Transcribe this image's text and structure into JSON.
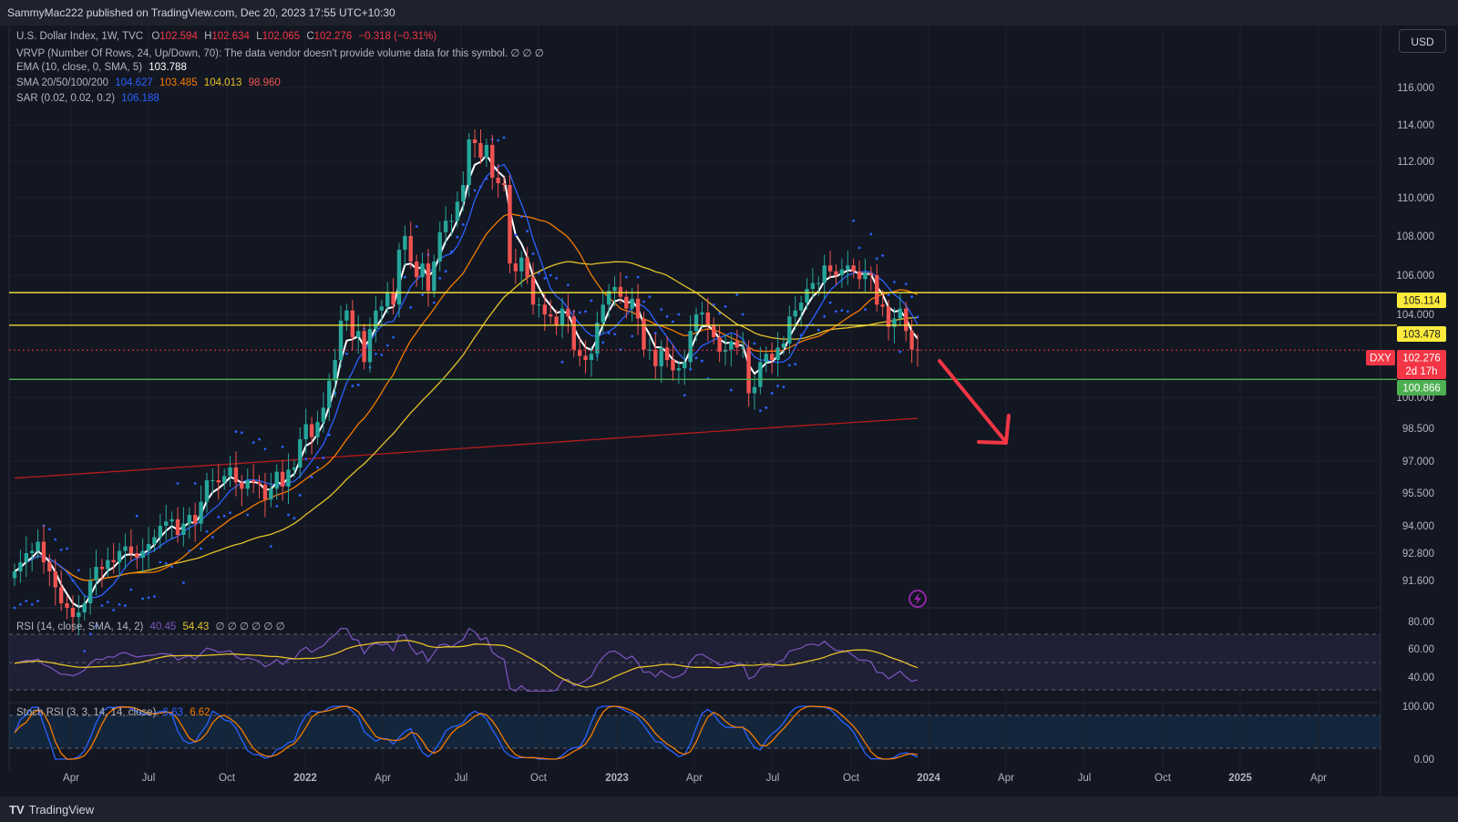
{
  "header": {
    "publisher": "SammyMac222 published on TradingView.com, Dec 20, 2023 17:55 UTC+10:30"
  },
  "currency_button": "USD",
  "footer": {
    "logo_text": "TradingView"
  },
  "colors": {
    "up": "#26a69a",
    "down": "#ef5350",
    "ema": "#ffffff",
    "sma20": "#2962ff",
    "sma50": "#f57c00",
    "sma100": "#e6c229",
    "sma200": "#b71c1c",
    "sar": "#2962ff",
    "rsi": "#7e57c2",
    "stoch_k": "#2962ff",
    "stoch_d": "#f57c00",
    "hline": "#ffeb3b",
    "support": "#4caf50",
    "arrow": "#f23645"
  },
  "legend": {
    "symbol": {
      "title": "U.S. Dollar Index, 1W, TVC",
      "o_label": "O",
      "o": "102.594",
      "h_label": "H",
      "h": "102.634",
      "l_label": "L",
      "l": "102.065",
      "c_label": "C",
      "c": "102.276",
      "chg": "−0.318 (−0.31%)"
    },
    "vrvp": "VRVP (Number Of Rows, 24, Up/Down, 70): The data vendor doesn't provide volume data for this symbol.  ∅  ∅  ∅",
    "ema": {
      "label": "EMA (10, close, 0, SMA, 5)",
      "value": "103.788"
    },
    "sma": {
      "label": "SMA 20/50/100/200",
      "v20": "104.627",
      "v50": "103.485",
      "v100": "104.013",
      "v200": "98.960"
    },
    "sar": {
      "label": "SAR (0.02, 0.02, 0.2)",
      "value": "106.188"
    },
    "rsi": {
      "label": "RSI (14, close, SMA, 14, 2)",
      "value": "40.45",
      "ma": "54.43",
      "na": "∅  ∅  ∅  ∅  ∅  ∅"
    },
    "stoch": {
      "label": "Stoch RSI (3, 3, 14, 14, close)",
      "k": "6.63",
      "d": "6.62"
    }
  },
  "chart_data": {
    "type": "candlestick",
    "symbol": "DXY",
    "timeframe": "1W",
    "price_axis_ticks": [
      "116.000",
      "114.000",
      "112.000",
      "110.000",
      "108.000",
      "106.000",
      "104.000",
      "100.000",
      "98.500",
      "97.000",
      "95.500",
      "94.000",
      "92.800",
      "91.600"
    ],
    "time_axis_ticks": [
      "Apr",
      "Jul",
      "Oct",
      "2022",
      "Apr",
      "Jul",
      "Oct",
      "2023",
      "Apr",
      "Jul",
      "Oct",
      "2024",
      "Apr",
      "Jul",
      "Oct",
      "2025",
      "Apr"
    ],
    "price_labels": {
      "r1": "105.114",
      "r2": "103.478",
      "last_symbol": "DXY",
      "last": "102.276",
      "countdown": "2d 17h",
      "support": "100.866"
    },
    "horizontal_lines": [
      105.114,
      103.478,
      100.866
    ],
    "last_price": 102.276,
    "weekly_closes_approx": [
      92.0,
      92.4,
      92.8,
      92.9,
      93.3,
      92.4,
      92.0,
      91.3,
      90.6,
      90.4,
      90.0,
      90.2,
      90.6,
      91.6,
      92.2,
      92.1,
      92.5,
      92.4,
      92.9,
      93.1,
      92.8,
      92.6,
      92.9,
      93.2,
      93.5,
      94.0,
      94.2,
      94.3,
      93.6,
      94.1,
      94.5,
      94.1,
      95.1,
      96.1,
      96.1,
      96.0,
      96.3,
      96.7,
      96.0,
      95.7,
      96.1,
      96.0,
      95.9,
      95.2,
      95.7,
      96.5,
      95.8,
      96.6,
      96.7,
      98.0,
      98.7,
      98.1,
      98.8,
      99.5,
      100.8,
      101.8,
      103.7,
      104.2,
      102.9,
      103.2,
      101.7,
      103.3,
      104.2,
      104.4,
      105.1,
      104.5,
      107.3,
      108.0,
      106.7,
      105.9,
      106.6,
      105.2,
      106.7,
      108.2,
      108.8,
      108.8,
      109.8,
      110.7,
      113.2,
      113.0,
      112.2,
      112.9,
      111.1,
      110.8,
      110.7,
      106.6,
      106.2,
      106.9,
      105.9,
      104.5,
      104.5,
      104.0,
      103.9,
      103.5,
      104.3,
      103.9,
      102.3,
      102.0,
      101.8,
      102.1,
      103.6,
      104.5,
      105.2,
      105.4,
      104.9,
      104.3,
      104.8,
      103.8,
      102.3,
      102.3,
      101.5,
      102.4,
      101.8,
      101.3,
      101.4,
      101.7,
      103.2,
      104.0,
      104.1,
      103.5,
      102.9,
      102.2,
      102.3,
      102.7,
      102.4,
      102.4,
      100.2,
      100.5,
      101.7,
      102.1,
      101.8,
      102.4,
      102.6,
      103.9,
      104.2,
      104.6,
      105.3,
      105.6,
      105.6,
      106.5,
      106.2,
      106.0,
      106.3,
      106.5,
      106.2,
      105.8,
      106.1,
      106.0,
      104.5,
      104.4,
      103.4,
      103.8,
      104.3,
      103.2,
      102.3,
      102.276
    ],
    "rsi_axis_ticks": [
      "80.00",
      "60.00",
      "40.00"
    ],
    "stoch_axis_ticks": [
      "100.00",
      "0.00"
    ]
  }
}
